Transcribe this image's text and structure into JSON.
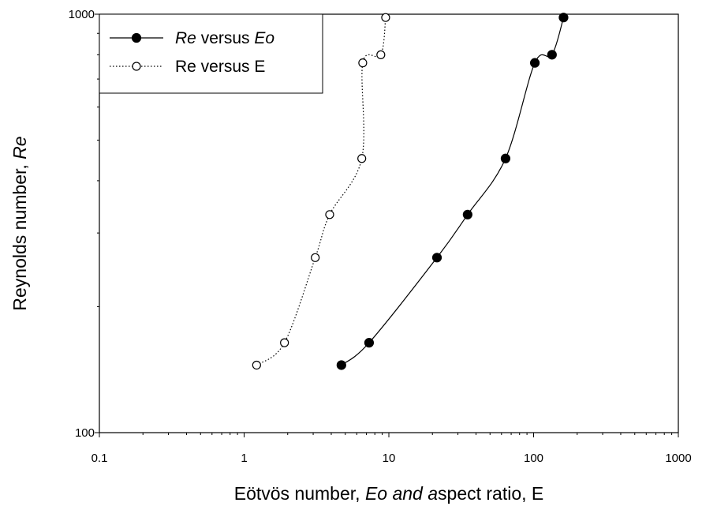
{
  "chart_data": {
    "type": "scatter",
    "xscale": "log",
    "yscale": "log",
    "xlim": [
      0.1,
      1000
    ],
    "ylim": [
      100,
      1000
    ],
    "x_ticks": [
      "0.1",
      "1",
      "10",
      "100",
      "1000"
    ],
    "y_ticks": [
      "100",
      "1000"
    ],
    "xlabel_parts": [
      {
        "text": "Eötvös number, ",
        "italic": false
      },
      {
        "text": "Eo and a",
        "italic": true
      },
      {
        "text": "spect ratio, E",
        "italic": false
      }
    ],
    "ylabel_parts": [
      {
        "text": "Reynolds number, ",
        "italic": false
      },
      {
        "text": "Re",
        "italic": true
      }
    ],
    "grid": false,
    "legend_position": "top-left",
    "series": [
      {
        "name": "Re versus Eo",
        "name_parts": [
          {
            "text": "Re",
            "italic": true
          },
          {
            "text": " versus ",
            "italic": false
          },
          {
            "text": "Eo",
            "italic": true
          }
        ],
        "marker": "filled-circle",
        "line": "solid",
        "color": "#000000",
        "points": [
          {
            "x": 4.7,
            "y": 145
          },
          {
            "x": 7.3,
            "y": 164
          },
          {
            "x": 21.5,
            "y": 262
          },
          {
            "x": 35,
            "y": 332
          },
          {
            "x": 64,
            "y": 452
          },
          {
            "x": 102,
            "y": 765
          },
          {
            "x": 134,
            "y": 800
          },
          {
            "x": 161,
            "y": 982
          }
        ]
      },
      {
        "name": "Re versus E",
        "name_parts": [
          {
            "text": "Re versus E",
            "italic": false
          }
        ],
        "marker": "open-circle",
        "line": "dotted",
        "color": "#000000",
        "points": [
          {
            "x": 1.22,
            "y": 145
          },
          {
            "x": 1.9,
            "y": 164
          },
          {
            "x": 3.1,
            "y": 262
          },
          {
            "x": 3.9,
            "y": 332
          },
          {
            "x": 6.5,
            "y": 452
          },
          {
            "x": 6.6,
            "y": 765
          },
          {
            "x": 8.8,
            "y": 800
          },
          {
            "x": 9.5,
            "y": 982
          }
        ]
      }
    ]
  }
}
